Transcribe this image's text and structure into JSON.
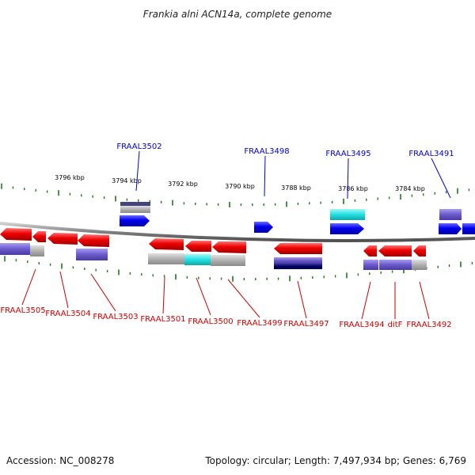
{
  "title": "Frankia alni ACN14a, complete genome",
  "ticks": [
    "3796 kbp",
    "3794 kbp",
    "3792 kbp",
    "3790 kbp",
    "3788 kbp",
    "3786 kbp",
    "3784 kbp"
  ],
  "top_labels": [
    "FRAAL3502",
    "FRAAL3498",
    "FRAAL3495",
    "FRAAL3491"
  ],
  "bottom_labels": [
    "FRAAL3505",
    "FRAAL3504",
    "FRAAL3503",
    "FRAAL3501",
    "FRAAL3500",
    "FRAAL3499",
    "FRAAL3497",
    "FRAAL3494",
    "ditF",
    "FRAAL3492"
  ],
  "footer": {
    "accession": "Accession: NC_008278",
    "info": "Topology: circular; Length: 7,497,934 bp; Genes: 6,769"
  },
  "colors": {
    "forward_gene": "#0000ee",
    "reverse_gene": "#ee0000",
    "forward_label": "#0000cc",
    "reverse_label": "#cc0000",
    "tick": "#1a7a1a",
    "backbone": "#888888",
    "cds_purple": "#6a5acd",
    "cds_gray": "#b0b0b0",
    "cds_cyan": "#22e0e0",
    "cds_navy": "#000066"
  }
}
